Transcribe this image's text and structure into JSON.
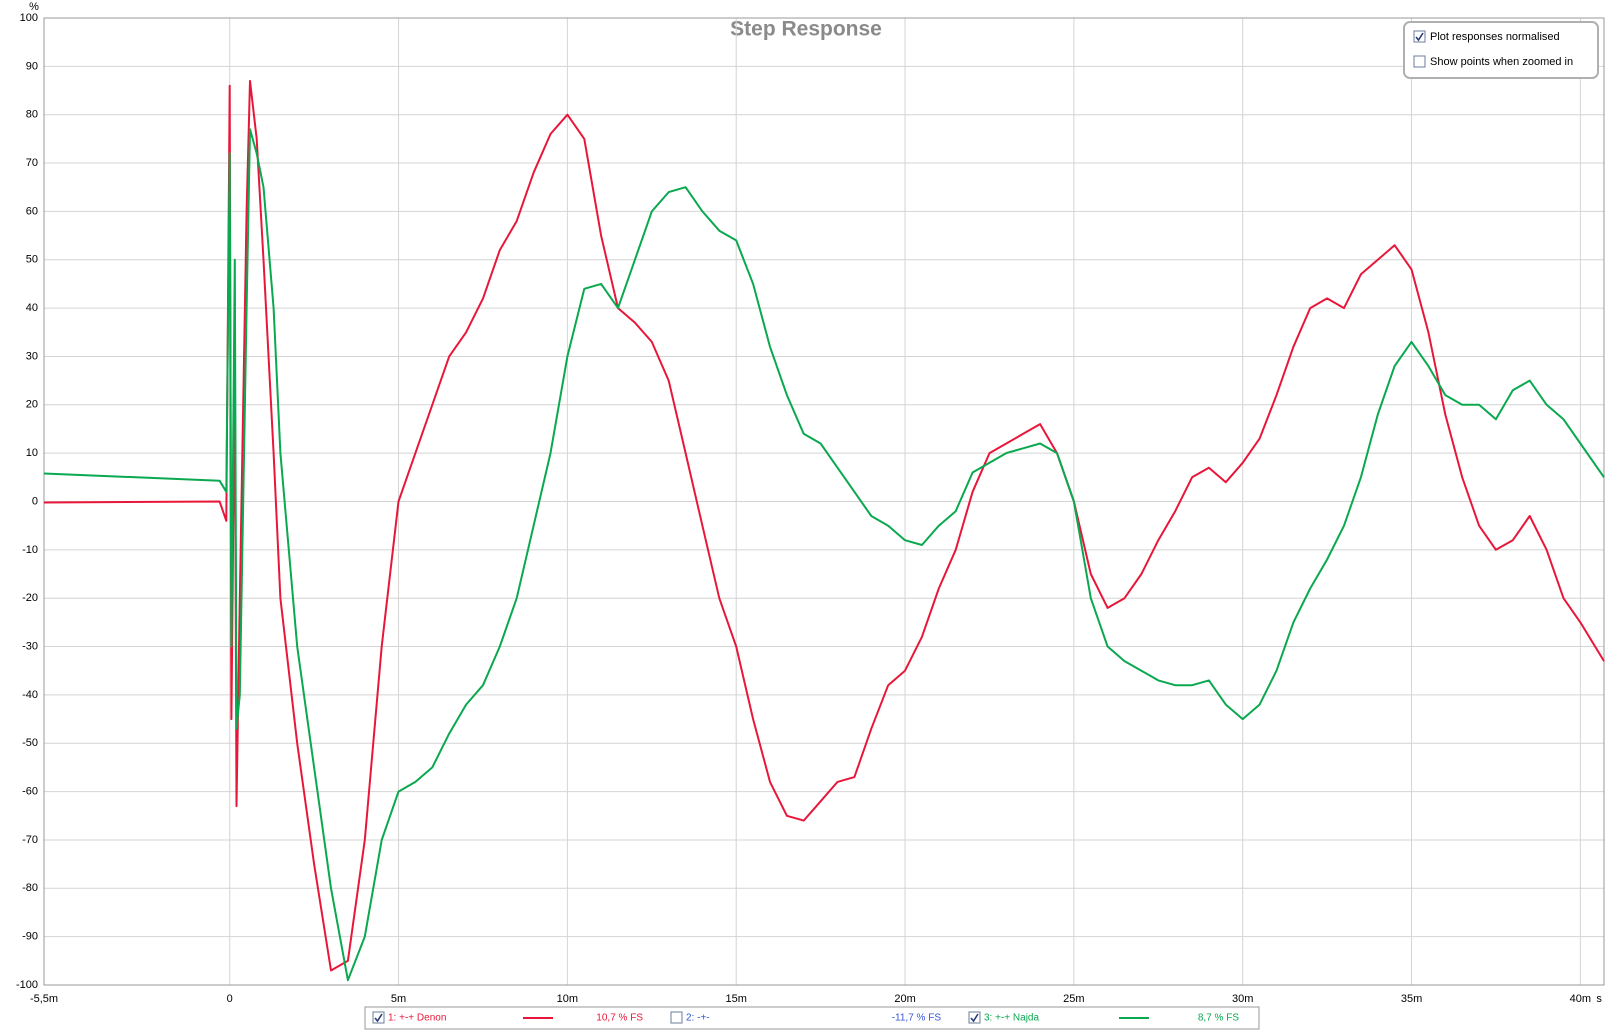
{
  "chart_data": {
    "type": "line",
    "title": "Step Response",
    "y_unit": "%",
    "x_unit": "s",
    "xlim": [
      -5.5,
      40.7
    ],
    "ylim": [
      -100,
      100
    ],
    "xticks": [
      {
        "value": -5.5,
        "label": "-5,5m"
      },
      0,
      {
        "value": 5,
        "label": "5m"
      },
      {
        "value": 10,
        "label": "10m"
      },
      {
        "value": 15,
        "label": "15m"
      },
      {
        "value": 20,
        "label": "20m"
      },
      {
        "value": 25,
        "label": "25m"
      },
      {
        "value": 30,
        "label": "30m"
      },
      {
        "value": 35,
        "label": "35m"
      },
      {
        "value": 40,
        "label": "40m"
      }
    ],
    "yticks": [
      -100,
      -90,
      -80,
      -70,
      -60,
      -50,
      -40,
      -30,
      -20,
      -10,
      0,
      10,
      20,
      30,
      40,
      50,
      60,
      70,
      80,
      90,
      100
    ],
    "grid": true,
    "x": [
      -5.5,
      -0.3,
      -0.1,
      0,
      0.05,
      0.15,
      0.2,
      0.3,
      0.5,
      0.6,
      0.8,
      1.0,
      1.3,
      1.5,
      2.0,
      2.5,
      3.0,
      3.5,
      4.0,
      4.5,
      5.0,
      5.5,
      6.0,
      6.5,
      7.0,
      7.5,
      8.0,
      8.5,
      9.0,
      9.5,
      10.0,
      10.5,
      11.0,
      11.5,
      12.0,
      12.5,
      13.0,
      13.5,
      14.0,
      14.5,
      15.0,
      15.5,
      16.0,
      16.5,
      17.0,
      17.5,
      18.0,
      18.5,
      19.0,
      19.5,
      20.0,
      20.5,
      21.0,
      21.5,
      22.0,
      22.5,
      23.0,
      23.5,
      24.0,
      24.5,
      25.0,
      25.5,
      26.0,
      26.5,
      27.0,
      27.5,
      28.0,
      28.5,
      29.0,
      29.5,
      30.0,
      30.5,
      31.0,
      31.5,
      32.0,
      32.5,
      33.0,
      33.5,
      34.0,
      34.5,
      35.0,
      35.5,
      36.0,
      36.5,
      37.0,
      37.5,
      38.0,
      38.5,
      39.0,
      39.5,
      40.0,
      40.7
    ],
    "series": [
      {
        "name": "1: +-+ Denon",
        "color": "#e8173a",
        "values": [
          -0.2,
          0,
          -4,
          86,
          -45,
          30,
          -63,
          -20,
          60,
          87,
          75,
          50,
          10,
          -20,
          -50,
          -75,
          -97,
          -95,
          -70,
          -30,
          0,
          10,
          20,
          30,
          35,
          42,
          52,
          58,
          68,
          76,
          80,
          75,
          55,
          40,
          37,
          33,
          25,
          10,
          -5,
          -20,
          -30,
          -45,
          -58,
          -65,
          -66,
          -62,
          -58,
          -57,
          -47,
          -38,
          -35,
          -28,
          -18,
          -10,
          2,
          10,
          12,
          14,
          16,
          10,
          0,
          -15,
          -22,
          -20,
          -15,
          -8,
          -2,
          5,
          7,
          4,
          8,
          13,
          22,
          32,
          40,
          42,
          40,
          47,
          50,
          53,
          48,
          35,
          18,
          5,
          -5,
          -10,
          -8,
          -3,
          -10,
          -20,
          -25,
          -33
        ]
      },
      {
        "name": "3: +-+ Najda",
        "color": "#0aa84f",
        "values": [
          5.8,
          4.3,
          2,
          72,
          -30,
          50,
          -47,
          -40,
          40,
          77,
          72,
          65,
          40,
          10,
          -30,
          -55,
          -80,
          -99,
          -90,
          -70,
          -60,
          -58,
          -55,
          -48,
          -42,
          -38,
          -30,
          -20,
          -5,
          10,
          30,
          44,
          45,
          40,
          50,
          60,
          64,
          65,
          60,
          56,
          54,
          45,
          32,
          22,
          14,
          12,
          7,
          2,
          -3,
          -5,
          -8,
          -9,
          -5,
          -2,
          6,
          8,
          10,
          11,
          12,
          10,
          0,
          -20,
          -30,
          -33,
          -35,
          -37,
          -38,
          -38,
          -37,
          -42,
          -45,
          -42,
          -35,
          -25,
          -18,
          -12,
          -5,
          5,
          18,
          28,
          33,
          28,
          22,
          20,
          20,
          17,
          23,
          25,
          20,
          17,
          12,
          5
        ]
      }
    ],
    "legend": [
      {
        "label": "1: +-+ Denon",
        "value_label": "10,7 % FS",
        "checked": true,
        "color": "#e8173a"
      },
      {
        "label": "2: -+-",
        "value_label": "-11,7 % FS",
        "checked": false,
        "color": "#3355dd"
      },
      {
        "label": "3: +-+ Najda",
        "value_label": "8,7 % FS",
        "checked": true,
        "color": "#0aa84f"
      }
    ],
    "options": [
      {
        "label": "Plot responses normalised",
        "checked": true
      },
      {
        "label": "Show points when zoomed in",
        "checked": false
      }
    ]
  }
}
